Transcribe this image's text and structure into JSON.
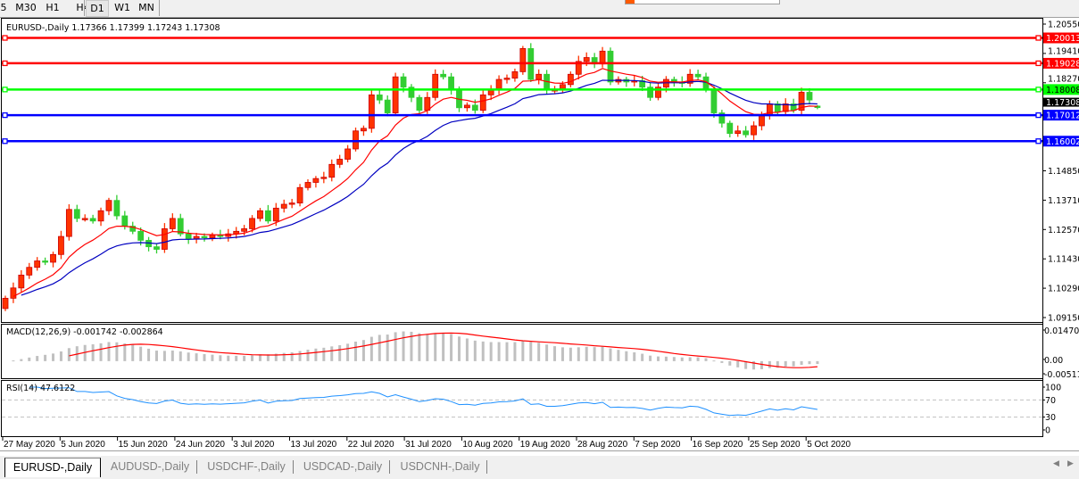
{
  "toolbar": {
    "timeframes": [
      {
        "label": "5"
      },
      {
        "label": "M30"
      },
      {
        "label": "H1"
      },
      {
        "label": "H4"
      },
      {
        "label": "D1",
        "active": true
      },
      {
        "label": "W1"
      },
      {
        "label": "MN"
      }
    ]
  },
  "chart": {
    "header": "EURUSD-,Daily  1.17366 1.17399 1.17243 1.17308",
    "price_ticks": [
      "1.20550",
      "1.19410",
      "1.18270",
      "1.14850",
      "1.13710",
      "1.12570",
      "1.11430",
      "1.10290",
      "1.09150"
    ],
    "current_price": "1.17308",
    "levels": [
      {
        "price": 1.20013,
        "label": "1.20013",
        "color": "#ff0000"
      },
      {
        "price": 1.19028,
        "label": "1.19028",
        "color": "#ff0000"
      },
      {
        "price": 1.18008,
        "label": "1.18008",
        "color": "#00ff00"
      },
      {
        "price": 1.17012,
        "label": "1.17012",
        "color": "#0000ff"
      },
      {
        "price": 1.16002,
        "label": "1.16002",
        "color": "#0000ff"
      }
    ],
    "colors": {
      "bull": "#ff3300",
      "bear": "#32cd32",
      "ma_fast": "#ff0000",
      "ma_slow": "#0000c0",
      "macd_hist": "#c0c0c0",
      "macd_signal": "#ff0000",
      "rsi": "#1e90ff"
    },
    "date_labels": [
      "27 May 2020",
      "5 Jun 2020",
      "15 Jun 2020",
      "24 Jun 2020",
      "3 Jul 2020",
      "13 Jul 2020",
      "22 Jul 2020",
      "31 Jul 2020",
      "10 Aug 2020",
      "19 Aug 2020",
      "28 Aug 2020",
      "7 Sep 2020",
      "16 Sep 2020",
      "25 Sep 2020",
      "5 Oct 2020"
    ]
  },
  "macd": {
    "label": "MACD(12,26,9) -0.001742 -0.002864",
    "ticks": [
      "0.014706",
      "0.00",
      "-0.005113"
    ]
  },
  "rsi": {
    "label": "RSI(14) 47.6122",
    "ticks": [
      "100",
      "70",
      "30",
      "0"
    ]
  },
  "tabs": [
    {
      "label": "EURUSD-,Daily",
      "active": true
    },
    {
      "label": "AUDUSD-,Daily"
    },
    {
      "label": "USDCHF-,Daily"
    },
    {
      "label": "USDCAD-,Daily"
    },
    {
      "label": "USDCNH-,Daily"
    }
  ],
  "chart_data": {
    "type": "candlestick",
    "symbol": "EURUSD-",
    "timeframe": "Daily",
    "ylim": [
      1.0915,
      1.2055
    ],
    "last_bar": {
      "open": 1.17366,
      "high": 1.17399,
      "low": 1.17243,
      "close": 1.17308
    },
    "first_open": 1.095,
    "close": [
      1.099,
      1.103,
      1.108,
      1.111,
      1.1135,
      1.113,
      1.116,
      1.123,
      1.1335,
      1.13,
      1.13,
      1.129,
      1.133,
      1.137,
      1.131,
      1.127,
      1.125,
      1.1215,
      1.119,
      1.118,
      1.126,
      1.13,
      1.124,
      1.122,
      1.123,
      1.1225,
      1.1235,
      1.123,
      1.124,
      1.125,
      1.126,
      1.13,
      1.133,
      1.129,
      1.134,
      1.1355,
      1.136,
      1.142,
      1.144,
      1.1455,
      1.146,
      1.151,
      1.153,
      1.157,
      1.164,
      1.165,
      1.178,
      1.176,
      1.171,
      1.185,
      1.181,
      1.177,
      1.172,
      1.177,
      1.186,
      1.185,
      1.18,
      1.173,
      1.174,
      1.172,
      1.178,
      1.18,
      1.184,
      1.1845,
      1.187,
      1.196,
      1.184,
      1.186,
      1.18,
      1.18,
      1.182,
      1.186,
      1.191,
      1.1925,
      1.19,
      1.195,
      1.183,
      1.184,
      1.183,
      1.1835,
      1.181,
      1.177,
      1.181,
      1.184,
      1.183,
      1.1825,
      1.186,
      1.185,
      1.18,
      1.171,
      1.167,
      1.163,
      1.164,
      1.1625,
      1.166,
      1.17,
      1.1745,
      1.1715,
      1.1745,
      1.172,
      1.179,
      1.176,
      1.17308
    ],
    "indicators": [
      "MA fast",
      "MA slow",
      "MACD(12,26,9)",
      "RSI(14)"
    ]
  }
}
